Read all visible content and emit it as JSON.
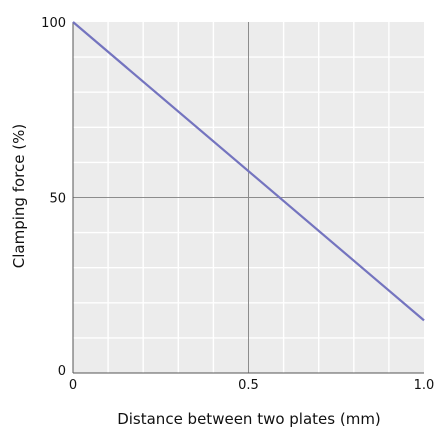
{
  "chart_data": {
    "type": "line",
    "title": "",
    "xlabel": "Distance between two plates (mm)",
    "ylabel": "Clamping force (%)",
    "xlim": [
      0,
      1.0
    ],
    "ylim": [
      0,
      100
    ],
    "x_ticks": [
      "0",
      "0.5",
      "1.0"
    ],
    "y_ticks": [
      "0",
      "50",
      "100"
    ],
    "grid": true,
    "grid_minor_step_x": 0.1,
    "grid_minor_step_y": 10,
    "colors": {
      "line": "#7474bf",
      "plot_background": "#ececec",
      "grid_minor": "#ffffff",
      "grid_major": "#8c8c8c",
      "axis": "#555555"
    },
    "series": [
      {
        "x": [
          0,
          1.0
        ],
        "y": [
          100,
          15
        ]
      }
    ]
  }
}
